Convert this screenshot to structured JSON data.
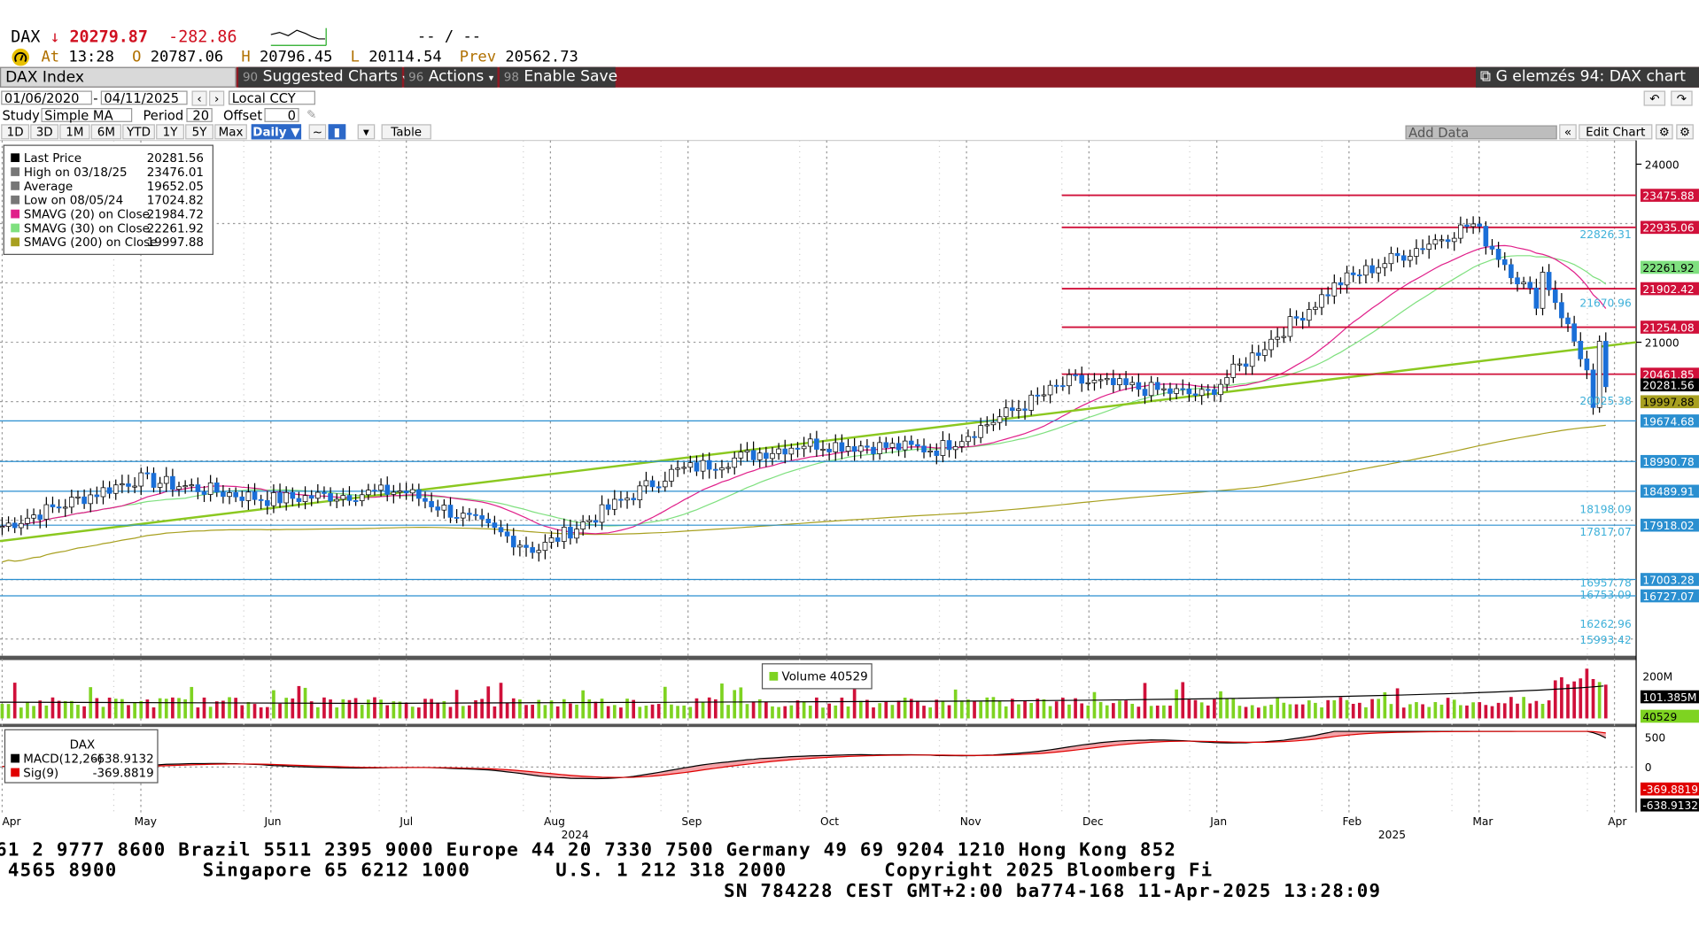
{
  "header": {
    "symbol": "DAX",
    "arrow": "↓",
    "last": "20279.87",
    "change": "-282.86",
    "quote_placeholder": "--  /  --",
    "at_label": "At",
    "time": "13:28",
    "open_label": "O",
    "open": "20787.06",
    "high_label": "H",
    "high": "20796.45",
    "low_label": "L",
    "low": "20114.54",
    "prev_label": "Prev",
    "prev": "20562.73"
  },
  "toolbar": {
    "security": "DAX Index",
    "suggested": "Suggested Charts",
    "actions": "Actions",
    "enable_save": "Enable Save",
    "chart_title": "G elemzés 94: DAX chart",
    "colors": {
      "bar": "#8e1a24",
      "dark": "#3a3a3a"
    }
  },
  "controls": {
    "start_date": "01/06/2020",
    "end_date": "04/11/2025",
    "currency": "Local CCY",
    "study_label": "Study",
    "study": "Simple MA",
    "period_label": "Period",
    "period": "20",
    "offset_label": "Offset",
    "offset": "0",
    "ranges": [
      "1D",
      "3D",
      "1M",
      "6M",
      "YTD",
      "1Y",
      "5Y",
      "Max"
    ],
    "frequency": "Daily ▼",
    "table": "Table",
    "add_data": "Add Data",
    "edit_chart": "Edit Chart"
  },
  "legend": [
    {
      "label": "Last Price",
      "value": "20281.56",
      "color": "#000000"
    },
    {
      "label": "High on 03/18/25",
      "value": "23476.01",
      "color": "#777777"
    },
    {
      "label": "Average",
      "value": "19652.05",
      "color": "#777777"
    },
    {
      "label": "Low on 08/05/24",
      "value": "17024.82",
      "color": "#777777"
    },
    {
      "label": "SMAVG (20)  on Close",
      "value": "21984.72",
      "color": "#e0208a"
    },
    {
      "label": "SMAVG (30)  on Close",
      "value": "22261.92",
      "color": "#7fe07f"
    },
    {
      "label": "SMAVG (200)  on Close",
      "value": "19997.88",
      "color": "#a8a020"
    }
  ],
  "volume_legend": {
    "label": "Volume",
    "value": "40529"
  },
  "macd_legend": {
    "title": "DAX",
    "items": [
      {
        "label": "MACD(12,26)",
        "value": "-638.9132",
        "color": "#000000"
      },
      {
        "label": "Sig(9)",
        "value": "-369.8819",
        "color": "#e00000"
      }
    ]
  },
  "chart_data": [
    {
      "type": "candlestick",
      "title": "DAX Index",
      "y_axis_ticks": [
        21000,
        24000
      ],
      "ylim": [
        15700,
        24400
      ],
      "x_tick_labels": [
        "Apr",
        "May",
        "Jun",
        "Jul",
        "Aug",
        "Sep",
        "Oct",
        "Nov",
        "Dec",
        "Jan",
        "Feb",
        "Mar",
        "Apr"
      ],
      "year_labels": [
        "2024",
        "2025"
      ],
      "price_series_approx": {
        "dates": [
          "Apr-24",
          "May-24",
          "Jun-24",
          "Jul-24",
          "Aug-24",
          "Sep-24",
          "Oct-24",
          "Nov-24",
          "Dec-24",
          "Jan-25",
          "Feb-25",
          "Mar-25",
          "Apr-25"
        ],
        "close": [
          17900,
          18700,
          18350,
          18500,
          17500,
          18800,
          19300,
          19200,
          20350,
          20100,
          22000,
          23000,
          20281.56
        ]
      },
      "price_levels_red": [
        23475.88,
        22935.06,
        21902.42,
        21254.08,
        20461.85
      ],
      "price_levels_blue": [
        19674.68,
        18990.78,
        18489.91,
        17918.02,
        17003.28,
        16727.07
      ],
      "level_labels": [
        "22826.31",
        "21670.96",
        "20025.38",
        "18198.09",
        "17817.07",
        "16957.78",
        "16753.09",
        "16262.96",
        "15993.42"
      ],
      "last_price_tag": "20281.56",
      "sma_tags": {
        "sma30": "22261.92",
        "sma200": "19997.88"
      }
    },
    {
      "type": "bar",
      "title": "Volume",
      "y_axis_ticks": [
        "200M"
      ],
      "current": "101.385M",
      "last": "40529"
    },
    {
      "type": "line",
      "title": "MACD",
      "y_axis_ticks": [
        500,
        0
      ],
      "series": [
        {
          "name": "MACD(12,26)",
          "last": -638.9132
        },
        {
          "name": "Sig(9)",
          "last": -369.8819
        }
      ]
    }
  ],
  "ticker": {
    "line1": "61 2 9777 8600 Brazil 5511 2395 9000 Europe 44 20 7330 7500 Germany 49 69 9204 1210 Hong Kong 852",
    "line2": " 4565 8900       Singapore 65 6212 1000       U.S. 1 212 318 2000        Copyright 2025 Bloomberg Fi",
    "line3": "SN 784228 CEST GMT+2:00 ba774-168 11-Apr-2025 13:28:09"
  }
}
